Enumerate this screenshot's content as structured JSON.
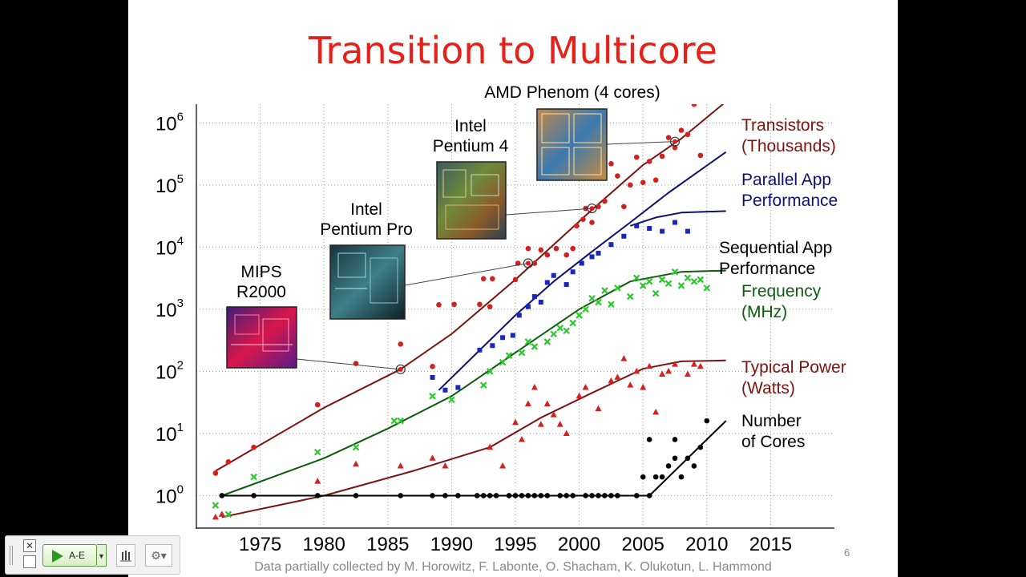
{
  "slide": {
    "title": "Transition to Multicore",
    "page_number": "6",
    "credit": "Data partially collected by M. Horowitz, F. Labonte, O. Shacham, K. Olukotun, L. Hammond"
  },
  "chart_data": {
    "type": "scatter",
    "title": "",
    "xlabel": "",
    "ylabel": "",
    "xlim": [
      1970,
      2020
    ],
    "ylim": [
      0.3,
      2000000
    ],
    "yscale": "log",
    "grid": true,
    "x_ticks": [
      "1975",
      "1980",
      "1985",
      "1990",
      "1995",
      "2000",
      "2005",
      "2010",
      "2015"
    ],
    "y_ticks": [
      {
        "base": "10",
        "exp": "0"
      },
      {
        "base": "10",
        "exp": "1"
      },
      {
        "base": "10",
        "exp": "2"
      },
      {
        "base": "10",
        "exp": "3"
      },
      {
        "base": "10",
        "exp": "4"
      },
      {
        "base": "10",
        "exp": "5"
      },
      {
        "base": "10",
        "exp": "6"
      }
    ],
    "series": [
      {
        "name": "Transistors (Thousands)",
        "label_lines": [
          "Transistors",
          "(Thousands)"
        ],
        "color": "#7a1410",
        "marker": "circle",
        "marker_color": "#d42020",
        "points": [
          [
            1971.5,
            2.3
          ],
          [
            1972.5,
            3.5
          ],
          [
            1974.5,
            6
          ],
          [
            1979.5,
            29
          ],
          [
            1982.5,
            134
          ],
          [
            1986,
            275
          ],
          [
            1988.5,
            120
          ],
          [
            1989,
            1180
          ],
          [
            1990.2,
            1200
          ],
          [
            1992.2,
            1200
          ],
          [
            1992.5,
            3100
          ],
          [
            1993.2,
            3100
          ],
          [
            1993,
            1100
          ],
          [
            1995,
            3000
          ],
          [
            1995.2,
            5500
          ],
          [
            1996,
            9500
          ],
          [
            1996.5,
            5500
          ],
          [
            1997,
            9000
          ],
          [
            1997.5,
            7500
          ],
          [
            1998.2,
            9500
          ],
          [
            1999,
            7500
          ],
          [
            1999.5,
            9500
          ],
          [
            1999.8,
            22000
          ],
          [
            2000.3,
            28000
          ],
          [
            2000.5,
            42000
          ],
          [
            2001,
            25000
          ],
          [
            2001.5,
            45000
          ],
          [
            2002,
            55000
          ],
          [
            2002.5,
            220000
          ],
          [
            2003,
            140000
          ],
          [
            2003.5,
            45000
          ],
          [
            2004,
            100000
          ],
          [
            2004.5,
            280000
          ],
          [
            2005,
            110000
          ],
          [
            2005.5,
            240000
          ],
          [
            2006,
            120000
          ],
          [
            2006.5,
            290000
          ],
          [
            2007,
            580000
          ],
          [
            2007.5,
            400000
          ],
          [
            2008,
            760000
          ],
          [
            2008.5,
            650000
          ],
          [
            2009,
            2000000
          ],
          [
            2009.5,
            300000
          ]
        ],
        "trend": [
          [
            1971.5,
            2.5
          ],
          [
            1980,
            26
          ],
          [
            1986,
            108
          ],
          [
            1990,
            400
          ],
          [
            1995,
            3000
          ],
          [
            2001,
            40000
          ],
          [
            2005,
            210000
          ],
          [
            2008,
            560000
          ],
          [
            2011.5,
            2200000
          ]
        ]
      },
      {
        "name": "Parallel App Performance",
        "label_lines": [
          "Parallel App",
          "Performance"
        ],
        "color": "#101070",
        "marker": "square",
        "marker_color": "#1a26b8",
        "points": [
          [
            1988.5,
            80
          ],
          [
            1989.5,
            50
          ],
          [
            1990.5,
            55
          ],
          [
            1992.2,
            220
          ],
          [
            1993.2,
            260
          ],
          [
            1994,
            350
          ],
          [
            1994.8,
            380
          ],
          [
            1995.3,
            800
          ],
          [
            1996,
            1100
          ],
          [
            1996.5,
            1600
          ],
          [
            1997,
            1300
          ],
          [
            1997.5,
            2700
          ],
          [
            1998,
            3500
          ],
          [
            1999,
            2500
          ],
          [
            1999.5,
            4000
          ],
          [
            2000.2,
            5500
          ],
          [
            2001,
            7000
          ],
          [
            2001.5,
            8000
          ],
          [
            2002.5,
            11000
          ],
          [
            2003.5,
            15000
          ],
          [
            2004.5,
            22000
          ],
          [
            2005.5,
            20000
          ],
          [
            2006.5,
            18000
          ],
          [
            2007.5,
            25000
          ],
          [
            2008.5,
            18000
          ]
        ],
        "trend": [
          [
            1989,
            50
          ],
          [
            1992,
            200
          ],
          [
            1995,
            800
          ],
          [
            1998,
            2800
          ],
          [
            2001,
            8500
          ],
          [
            2004,
            25000
          ],
          [
            2007,
            75000
          ],
          [
            2011.5,
            340000
          ]
        ]
      },
      {
        "name": "Sequential App Performance",
        "label_lines": [
          "Sequential App",
          "Performance"
        ],
        "color": "#101070",
        "marker": "none",
        "points": [],
        "trend": [
          [
            2004,
            22000
          ],
          [
            2006,
            30000
          ],
          [
            2008,
            36000
          ],
          [
            2011.5,
            38000
          ]
        ]
      },
      {
        "name": "Frequency (MHz)",
        "label_lines": [
          "Frequency",
          "(MHz)"
        ],
        "color": "#0d5c0d",
        "marker": "cross",
        "marker_color": "#2ac82a",
        "points": [
          [
            1971.5,
            0.7
          ],
          [
            1972.5,
            0.5
          ],
          [
            1974.5,
            2
          ],
          [
            1979.5,
            5
          ],
          [
            1982.5,
            6
          ],
          [
            1985.5,
            16
          ],
          [
            1986,
            16
          ],
          [
            1988.5,
            40
          ],
          [
            1990,
            35
          ],
          [
            1992.5,
            60
          ],
          [
            1993,
            100
          ],
          [
            1994,
            140
          ],
          [
            1994.5,
            180
          ],
          [
            1995.5,
            200
          ],
          [
            1996,
            300
          ],
          [
            1996.5,
            250
          ],
          [
            1997.5,
            300
          ],
          [
            1998,
            400
          ],
          [
            1998.5,
            500
          ],
          [
            1999,
            450
          ],
          [
            1999.5,
            600
          ],
          [
            2000,
            800
          ],
          [
            2000.5,
            1000
          ],
          [
            2001,
            1500
          ],
          [
            2001.5,
            1300
          ],
          [
            2002,
            2000
          ],
          [
            2002.5,
            1200
          ],
          [
            2003,
            2200
          ],
          [
            2004,
            1600
          ],
          [
            2004.5,
            3200
          ],
          [
            2005,
            2400
          ],
          [
            2005.5,
            2800
          ],
          [
            2006,
            1800
          ],
          [
            2006.5,
            3000
          ],
          [
            2007,
            2600
          ],
          [
            2007.5,
            4000
          ],
          [
            2008,
            2400
          ],
          [
            2008.5,
            3200
          ],
          [
            2009,
            2800
          ],
          [
            2009.5,
            3000
          ],
          [
            2010,
            2200
          ]
        ],
        "trend": [
          [
            1972,
            1
          ],
          [
            1980,
            4
          ],
          [
            1985,
            12
          ],
          [
            1990,
            40
          ],
          [
            1995,
            200
          ],
          [
            2000,
            1000
          ],
          [
            2004,
            2800
          ],
          [
            2008,
            4000
          ],
          [
            2011.5,
            4200
          ]
        ]
      },
      {
        "name": "Typical Power (Watts)",
        "label_lines": [
          "Typical Power",
          "(Watts)"
        ],
        "color": "#7a1410",
        "marker": "triangle",
        "marker_color": "#d42020",
        "points": [
          [
            1971.5,
            0.45
          ],
          [
            1972,
            0.5
          ],
          [
            1979.5,
            1.7
          ],
          [
            1982.5,
            3.2
          ],
          [
            1986,
            3
          ],
          [
            1988.5,
            4
          ],
          [
            1989.5,
            3
          ],
          [
            1993,
            6
          ],
          [
            1994,
            3
          ],
          [
            1995,
            15
          ],
          [
            1995.5,
            8
          ],
          [
            1996,
            30
          ],
          [
            1996.5,
            55
          ],
          [
            1997,
            14
          ],
          [
            1997.5,
            30
          ],
          [
            1998,
            20
          ],
          [
            1998.5,
            14
          ],
          [
            1999,
            10
          ],
          [
            2000,
            40
          ],
          [
            2000.5,
            55
          ],
          [
            2001.5,
            25
          ],
          [
            2002.5,
            70
          ],
          [
            2003,
            80
          ],
          [
            2003.5,
            160
          ],
          [
            2004,
            60
          ],
          [
            2004.5,
            100
          ],
          [
            2005,
            55
          ],
          [
            2005.5,
            120
          ],
          [
            2006,
            22
          ],
          [
            2006.5,
            90
          ],
          [
            2007,
            100
          ],
          [
            2007.5,
            130
          ],
          [
            2008.5,
            90
          ],
          [
            2009,
            130
          ],
          [
            2009.5,
            120
          ]
        ],
        "trend": [
          [
            1972,
            0.45
          ],
          [
            1980,
            1
          ],
          [
            1987,
            2.5
          ],
          [
            1993,
            6
          ],
          [
            1997,
            18
          ],
          [
            2001,
            45
          ],
          [
            2005,
            110
          ],
          [
            2008,
            145
          ],
          [
            2011.5,
            150
          ]
        ]
      },
      {
        "name": "Number of Cores",
        "label_lines": [
          "Number",
          "of Cores"
        ],
        "color": "#000000",
        "marker": "circle",
        "marker_color": "#000000",
        "points": [
          [
            1972,
            1
          ],
          [
            1974.5,
            1
          ],
          [
            1979.5,
            1
          ],
          [
            1982.5,
            1
          ],
          [
            1986,
            1
          ],
          [
            1988.5,
            1
          ],
          [
            1989.5,
            1
          ],
          [
            1990.5,
            1
          ],
          [
            1992,
            1
          ],
          [
            1992.5,
            1
          ],
          [
            1993,
            1
          ],
          [
            1993.5,
            1
          ],
          [
            1994.5,
            1
          ],
          [
            1995,
            1
          ],
          [
            1995.5,
            1
          ],
          [
            1996,
            1
          ],
          [
            1996.5,
            1
          ],
          [
            1997,
            1
          ],
          [
            1997.5,
            1
          ],
          [
            1998.5,
            1
          ],
          [
            1999,
            1
          ],
          [
            1999.5,
            1
          ],
          [
            2000.5,
            1
          ],
          [
            2001,
            1
          ],
          [
            2001.5,
            1
          ],
          [
            2002,
            1
          ],
          [
            2002.5,
            1
          ],
          [
            2003,
            1
          ],
          [
            2004.5,
            1
          ],
          [
            2005.5,
            1
          ],
          [
            2005,
            2
          ],
          [
            2005.5,
            8
          ],
          [
            2006,
            2
          ],
          [
            2006.5,
            2
          ],
          [
            2007,
            3
          ],
          [
            2007.5,
            4
          ],
          [
            2007.5,
            8
          ],
          [
            2008,
            2
          ],
          [
            2008.5,
            4
          ],
          [
            2009,
            3
          ],
          [
            2009.5,
            6
          ],
          [
            2010,
            16
          ]
        ],
        "trend": [
          [
            1972,
            1
          ],
          [
            2005.5,
            1
          ],
          [
            2011.5,
            16
          ]
        ]
      }
    ],
    "annotations": [
      {
        "label_lines": [
          "MIPS",
          "R2000"
        ],
        "image": "chip-die-mips",
        "point": [
          1986,
          108
        ]
      },
      {
        "label_lines": [
          "Intel",
          "Pentium Pro"
        ],
        "image": "chip-die-pentium-pro",
        "point": [
          1996,
          5500
        ]
      },
      {
        "label_lines": [
          "Intel",
          "Pentium 4"
        ],
        "image": "chip-die-pentium-4",
        "point": [
          2001,
          42000
        ]
      },
      {
        "label_lines": [
          "AMD Phenom (4 cores)"
        ],
        "image": "chip-die-amd-phenom",
        "point": [
          2007.5,
          500000
        ]
      }
    ]
  },
  "toolbar": {
    "close_icon": "close-icon",
    "play_label": "A-E",
    "dropdown_icon": "chevron-down-icon",
    "stats_icon": "bar-chart-icon",
    "settings_icon": "gear-icon"
  }
}
